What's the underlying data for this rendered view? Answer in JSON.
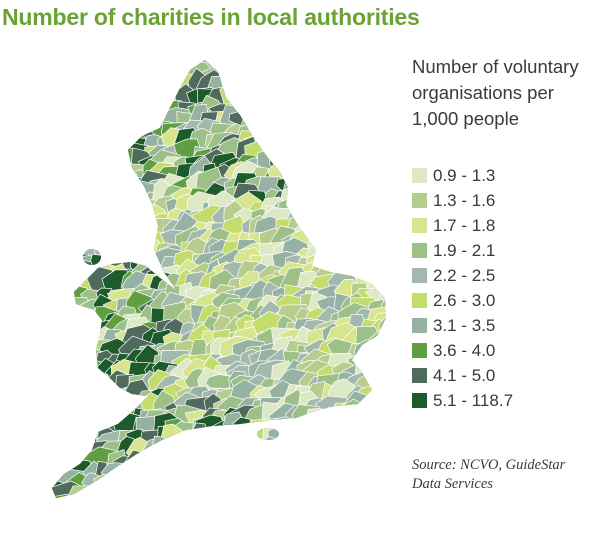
{
  "title": "Number of charities in local authorities",
  "legend": {
    "title_lines": [
      "Number of voluntary",
      "organisations per",
      "1,000 people"
    ],
    "items": [
      {
        "label": "0.9 - 1.3",
        "color": "#dde8c4"
      },
      {
        "label": "1.3 - 1.6",
        "color": "#b6cd8e"
      },
      {
        "label": "1.7 - 1.8",
        "color": "#d7e58e"
      },
      {
        "label": "1.9 - 2.1",
        "color": "#9dc089"
      },
      {
        "label": "2.2 - 2.5",
        "color": "#a4b9ae"
      },
      {
        "label": "2.6 - 3.0",
        "color": "#c3dc6c"
      },
      {
        "label": "3.1 - 3.5",
        "color": "#95b2a2"
      },
      {
        "label": "3.6 - 4.0",
        "color": "#5f9e41"
      },
      {
        "label": "4.1 - 5.0",
        "color": "#4f6b5d"
      },
      {
        "label": "5.1 - 118.7",
        "color": "#1d5a2c"
      }
    ]
  },
  "source_lines": [
    "Source: NCVO, GuideStar",
    "Data Services"
  ],
  "colors": {
    "title": "#6aa334",
    "text": "#3a3a3a",
    "border": "#ffffff"
  }
}
